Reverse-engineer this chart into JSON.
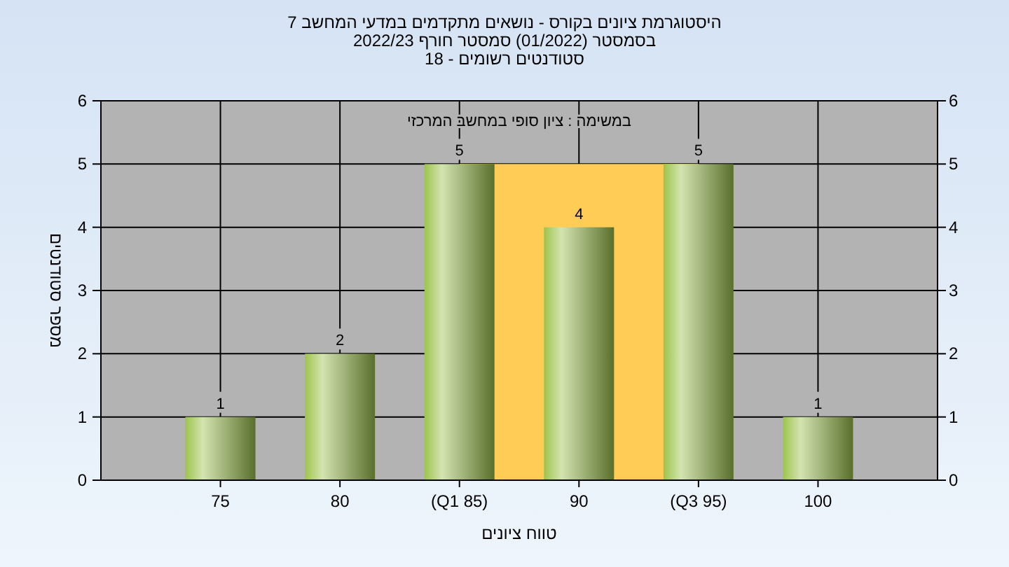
{
  "chart_data": {
    "type": "bar",
    "title": "היסטוגרמת ציונים בקורס - נושאים מתקדמים במדעי המחשב 7\nבסמסטר  (01/2022)  סמסטר חורף 2022/23\nסטודנטים רשומים - 18",
    "xlabel": "טווח ציונים",
    "ylabel": "מספר סטודנטים",
    "annotations": [
      "במשימה : ציון סופי במחשב המרכזי"
    ],
    "categories": [
      "75",
      "80",
      "(Q1 85)",
      "90",
      "(Q3 95)",
      "100"
    ],
    "series": [
      {
        "type": "area",
        "color": "#ffcc55",
        "values": [
          null,
          null,
          5,
          5,
          5,
          null
        ]
      },
      {
        "color": "#9dc44d",
        "values": [
          1,
          2,
          5,
          4,
          5,
          1
        ],
        "value_labels": [
          "1",
          "2",
          "5",
          "4",
          "5",
          "1"
        ]
      }
    ],
    "ylim": [
      0,
      6
    ],
    "yticks": [
      0,
      1,
      2,
      3,
      4,
      5,
      6
    ],
    "y2lim": [
      0,
      6
    ],
    "y2ticks": [
      0,
      1,
      2,
      3,
      4,
      5,
      6
    ],
    "grid": true
  }
}
